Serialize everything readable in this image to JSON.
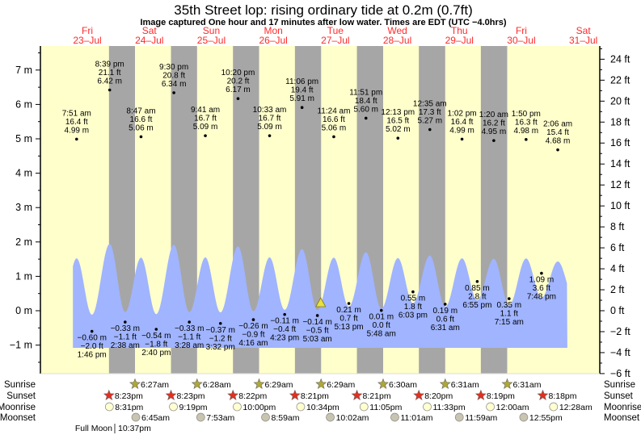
{
  "header": {
    "title": "35th Street lop: rising  ordinary tide at 0.2m (0.7ft)",
    "subtitle": "Image captured One hour and 17 minutes after low water. Times are EDT (UTC −4.0hrs)"
  },
  "colors": {
    "day": "#ffffcc",
    "night": "#a6a6a6",
    "water": "#a0b4ff",
    "daylabel": "#ff2a2a",
    "sunrise": "#b0a830",
    "sunset": "#e03020",
    "moonrise": "#ffffd0",
    "moonset": "#c8c4b0"
  },
  "chart_data": {
    "type": "area",
    "title": "35th Street lop: rising  ordinary tide at 0.2m (0.7ft)",
    "days": [
      {
        "dow": "Fri",
        "date": "23–Jul"
      },
      {
        "dow": "Sat",
        "date": "24–Jul"
      },
      {
        "dow": "Sun",
        "date": "25–Jul"
      },
      {
        "dow": "Mon",
        "date": "26–Jul"
      },
      {
        "dow": "Tue",
        "date": "27–Jul"
      },
      {
        "dow": "Wed",
        "date": "28–Jul"
      },
      {
        "dow": "Thu",
        "date": "29–Jul"
      },
      {
        "dow": "Fri",
        "date": "30–Jul"
      },
      {
        "dow": "Sat",
        "date": "31–Jul"
      }
    ],
    "y_left": {
      "unit": "m",
      "ticks": [
        "7 m",
        "6 m",
        "5 m",
        "4 m",
        "3 m",
        "2 m",
        "1 m",
        "0 m",
        "−1 m"
      ],
      "values": [
        7,
        6,
        5,
        4,
        3,
        2,
        1,
        0,
        -1
      ]
    },
    "y_right": {
      "unit": "ft",
      "ticks": [
        "24 ft",
        "22 ft",
        "20 ft",
        "18 ft",
        "16 ft",
        "14 ft",
        "12 ft",
        "10 ft",
        "8 ft",
        "6 ft",
        "4 ft",
        "2 ft",
        "0 ft",
        "−2 ft",
        "−4 ft",
        "−6 ft"
      ],
      "values": [
        24,
        22,
        20,
        18,
        16,
        14,
        12,
        10,
        8,
        6,
        4,
        2,
        0,
        -2,
        -4,
        -6
      ]
    },
    "extrema": [
      {
        "type": "H",
        "hours": 7.85,
        "time": "7:51 am",
        "ft": "16.4 ft",
        "m": "4.99 m",
        "value": 4.99
      },
      {
        "type": "L",
        "hours": 13.77,
        "time": "1:46 pm",
        "ft": "−2.0 ft",
        "m": "−0.60 m",
        "value": -0.6
      },
      {
        "type": "H",
        "hours": 20.65,
        "time": "8:39 pm",
        "ft": "21.1 ft",
        "m": "6.42 m",
        "value": 6.42
      },
      {
        "type": "L",
        "hours": 26.63,
        "time": "2:38 am",
        "ft": "−1.1 ft",
        "m": "−0.33 m",
        "value": -0.33
      },
      {
        "type": "H",
        "hours": 32.78,
        "time": "8:47 am",
        "ft": "16.6 ft",
        "m": "5.06 m",
        "value": 5.06
      },
      {
        "type": "L",
        "hours": 38.67,
        "time": "2:40 pm",
        "ft": "−1.8 ft",
        "m": "−0.54 m",
        "value": -0.54
      },
      {
        "type": "H",
        "hours": 45.5,
        "time": "9:30 pm",
        "ft": "20.8 ft",
        "m": "6.34 m",
        "value": 6.34
      },
      {
        "type": "L",
        "hours": 51.47,
        "time": "3:28 am",
        "ft": "−1.1 ft",
        "m": "−0.33 m",
        "value": -0.33
      },
      {
        "type": "H",
        "hours": 57.68,
        "time": "9:41 am",
        "ft": "16.7 ft",
        "m": "5.09 m",
        "value": 5.09
      },
      {
        "type": "L",
        "hours": 63.53,
        "time": "3:32 pm",
        "ft": "−1.2 ft",
        "m": "−0.37 m",
        "value": -0.37
      },
      {
        "type": "H",
        "hours": 70.33,
        "time": "10:20 pm",
        "ft": "20.2 ft",
        "m": "6.17 m",
        "value": 6.17
      },
      {
        "type": "L",
        "hours": 76.27,
        "time": "4:16 am",
        "ft": "−0.9 ft",
        "m": "−0.26 m",
        "value": -0.26
      },
      {
        "type": "H",
        "hours": 82.55,
        "time": "10:33 am",
        "ft": "16.7 ft",
        "m": "5.09 m",
        "value": 5.09
      },
      {
        "type": "L",
        "hours": 88.38,
        "time": "4:23 pm",
        "ft": "−0.4 ft",
        "m": "−0.11 m",
        "value": -0.11
      },
      {
        "type": "H",
        "hours": 95.1,
        "time": "11:06 pm",
        "ft": "19.4 ft",
        "m": "5.91 m",
        "value": 5.91
      },
      {
        "type": "L",
        "hours": 101.05,
        "time": "5:03 am",
        "ft": "−0.5 ft",
        "m": "−0.14 m",
        "value": -0.14
      },
      {
        "type": "H",
        "hours": 107.4,
        "time": "11:24 am",
        "ft": "16.6 ft",
        "m": "5.06 m",
        "value": 5.06
      },
      {
        "type": "L",
        "hours": 113.22,
        "time": "5:13 pm",
        "ft": "0.7 ft",
        "m": "0.21 m",
        "value": 0.21
      },
      {
        "type": "H",
        "hours": 119.85,
        "time": "11:51 pm",
        "ft": "18.4 ft",
        "m": "5.60 m",
        "value": 5.6
      },
      {
        "type": "L",
        "hours": 125.8,
        "time": "5:48 am",
        "ft": "0.0 ft",
        "m": "0.01 m",
        "value": 0.01
      },
      {
        "type": "H",
        "hours": 132.22,
        "time": "12:13 pm",
        "ft": "16.5 ft",
        "m": "5.02 m",
        "value": 5.02
      },
      {
        "type": "L",
        "hours": 138.05,
        "time": "6:03 pm",
        "ft": "1.8 ft",
        "m": "0.55 m",
        "value": 0.55
      },
      {
        "type": "H",
        "hours": 144.58,
        "time": "12:35 am",
        "ft": "17.3 ft",
        "m": "5.27 m",
        "value": 5.27
      },
      {
        "type": "L",
        "hours": 150.52,
        "time": "6:31 am",
        "ft": "0.6 ft",
        "m": "0.19 m",
        "value": 0.19
      },
      {
        "type": "H",
        "hours": 157.03,
        "time": "1:02 pm",
        "ft": "16.4 ft",
        "m": "4.99 m",
        "value": 4.99
      },
      {
        "type": "L",
        "hours": 162.92,
        "time": "6:55 pm",
        "ft": "2.8 ft",
        "m": "0.85 m",
        "value": 0.85
      },
      {
        "type": "H",
        "hours": 169.33,
        "time": "1:20 am",
        "ft": "16.2 ft",
        "m": "4.95 m",
        "value": 4.95
      },
      {
        "type": "L",
        "hours": 175.25,
        "time": "7:15 am",
        "ft": "1.1 ft",
        "m": "0.35 m",
        "value": 0.35
      },
      {
        "type": "H",
        "hours": 181.83,
        "time": "1:50 pm",
        "ft": "16.3 ft",
        "m": "4.98 m",
        "value": 4.98
      },
      {
        "type": "L",
        "hours": 187.8,
        "time": "7:48 pm",
        "ft": "3.6 ft",
        "m": "1.09 m",
        "value": 1.09
      },
      {
        "type": "H",
        "hours": 194.1,
        "time": "2:06 am",
        "ft": "15.4 ft",
        "m": "4.68 m",
        "value": 4.68
      }
    ],
    "current": {
      "hours": 102.33,
      "value": 0.2
    },
    "nights": [
      [
        20.38,
        30.45
      ],
      [
        44.38,
        54.47
      ],
      [
        68.37,
        78.48
      ],
      [
        92.35,
        102.48
      ],
      [
        116.35,
        126.5
      ],
      [
        140.33,
        150.52
      ],
      [
        164.32,
        174.52
      ]
    ]
  },
  "events": {
    "labels": {
      "sunrise": "Sunrise",
      "sunset": "Sunset",
      "moonrise": "Moonrise",
      "moonset": "Moonset"
    },
    "sunrise": [
      {
        "hours": 30.45,
        "t": "6:27am"
      },
      {
        "hours": 54.47,
        "t": "6:28am"
      },
      {
        "hours": 78.48,
        "t": "6:29am"
      },
      {
        "hours": 102.48,
        "t": "6:29am"
      },
      {
        "hours": 126.5,
        "t": "6:30am"
      },
      {
        "hours": 150.52,
        "t": "6:31am"
      },
      {
        "hours": 174.52,
        "t": "6:31am"
      }
    ],
    "sunset": [
      {
        "hours": 20.38,
        "t": "8:23pm"
      },
      {
        "hours": 44.38,
        "t": "8:23pm"
      },
      {
        "hours": 68.37,
        "t": "8:22pm"
      },
      {
        "hours": 92.35,
        "t": "8:21pm"
      },
      {
        "hours": 116.35,
        "t": "8:21pm"
      },
      {
        "hours": 140.33,
        "t": "8:20pm"
      },
      {
        "hours": 164.32,
        "t": "8:19pm"
      },
      {
        "hours": 188.3,
        "t": "8:18pm"
      }
    ],
    "moonrise": [
      {
        "hours": 20.52,
        "t": "8:31pm"
      },
      {
        "hours": 45.32,
        "t": "9:19pm"
      },
      {
        "hours": 70.0,
        "t": "10:00pm"
      },
      {
        "hours": 94.57,
        "t": "10:34pm"
      },
      {
        "hours": 119.08,
        "t": "11:05pm"
      },
      {
        "hours": 143.55,
        "t": "11:33pm"
      },
      {
        "hours": 168.0,
        "t": "12:00am"
      },
      {
        "hours": 192.47,
        "t": "12:28am"
      }
    ],
    "moonset": [
      {
        "hours": 30.75,
        "t": "6:45am"
      },
      {
        "hours": 55.88,
        "t": "7:53am"
      },
      {
        "hours": 80.98,
        "t": "8:59am"
      },
      {
        "hours": 106.03,
        "t": "10:02am"
      },
      {
        "hours": 131.02,
        "t": "11:01am"
      },
      {
        "hours": 155.98,
        "t": "11:59am"
      },
      {
        "hours": 180.92,
        "t": "12:55pm"
      }
    ],
    "phase": {
      "label": "Full Moon",
      "time": "10:37pm",
      "hours": 22.62
    }
  }
}
